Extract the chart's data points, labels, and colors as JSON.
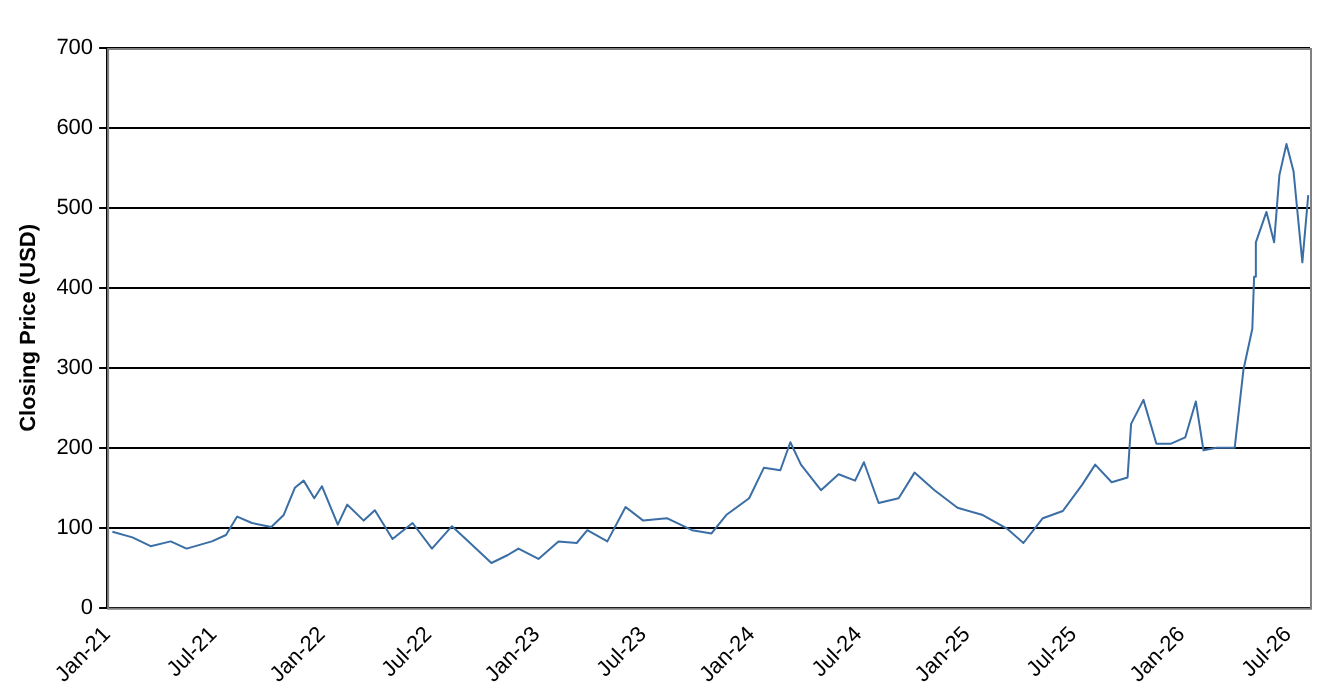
{
  "chart_data": {
    "type": "line",
    "ylabel": "Closing Price (USD)",
    "x": [
      "2021-01-10",
      "2021-02-13",
      "2021-03-16",
      "2021-04-19",
      "2021-05-16",
      "2021-06-28",
      "2021-07-22",
      "2021-08-10",
      "2021-09-04",
      "2021-10-07",
      "2021-10-28",
      "2021-11-16",
      "2021-12-01",
      "2021-12-19",
      "2022-01-01",
      "2022-01-28",
      "2022-02-13",
      "2022-03-13",
      "2022-04-01",
      "2022-05-01",
      "2022-06-04",
      "2022-07-07",
      "2022-08-10",
      "2022-09-07",
      "2022-10-16",
      "2022-11-13",
      "2022-12-01",
      "2023-01-04",
      "2023-02-07",
      "2023-03-10",
      "2023-03-28",
      "2023-05-01",
      "2023-06-01",
      "2023-07-01",
      "2023-08-10",
      "2023-09-22",
      "2023-10-25",
      "2023-11-19",
      "2023-12-28",
      "2024-01-22",
      "2024-02-19",
      "2024-03-07",
      "2024-03-25",
      "2024-04-28",
      "2024-05-28",
      "2024-06-25",
      "2024-07-10",
      "2024-08-04",
      "2024-09-07",
      "2024-10-04",
      "2024-11-07",
      "2024-12-16",
      "2025-01-28",
      "2025-03-10",
      "2025-04-07",
      "2025-05-10",
      "2025-06-13",
      "2025-07-16",
      "2025-08-07",
      "2025-09-04",
      "2025-10-01",
      "2025-10-07",
      "2025-10-28",
      "2025-11-19",
      "2025-12-13",
      "2026-01-07",
      "2026-01-25",
      "2026-02-07",
      "2026-03-01",
      "2026-04-01",
      "2026-04-16",
      "2026-05-01",
      "2026-05-04",
      "2026-05-07",
      "2026-05-25",
      "2026-06-07",
      "2026-06-16",
      "2026-06-28",
      "2026-07-10",
      "2026-07-16",
      "2026-07-25",
      "2026-08-04"
    ],
    "series": [
      {
        "color": "#3a6ea5",
        "values": [
          95,
          88,
          77,
          83,
          74,
          83,
          91,
          114,
          106,
          101,
          116,
          150,
          159,
          137,
          152,
          104,
          129,
          109,
          122,
          86,
          106,
          74,
          102,
          83,
          56,
          66,
          74,
          61,
          83,
          81,
          97,
          83,
          126,
          109,
          112,
          97,
          93,
          116,
          137,
          175,
          172,
          207,
          179,
          147,
          167,
          159,
          182,
          131,
          137,
          169,
          147,
          125,
          116,
          99,
          81,
          112,
          121,
          154,
          179,
          157,
          163,
          230,
          260,
          205,
          205,
          213,
          258,
          197,
          200,
          200,
          298,
          349,
          414,
          457,
          495,
          457,
          541,
          580,
          546,
          500,
          432,
          516
        ]
      }
    ],
    "xlim": [
      "2021-01-01",
      "2026-08-07"
    ],
    "xticks": [
      {
        "value": "2021-01-01",
        "label": "Jan-21"
      },
      {
        "value": "2021-07-01",
        "label": "Jul-21"
      },
      {
        "value": "2022-01-01",
        "label": "Jan-22"
      },
      {
        "value": "2022-07-01",
        "label": "Jul-22"
      },
      {
        "value": "2023-01-01",
        "label": "Jan-23"
      },
      {
        "value": "2023-07-01",
        "label": "Jul-23"
      },
      {
        "value": "2024-01-01",
        "label": "Jan-24"
      },
      {
        "value": "2024-07-01",
        "label": "Jul-24"
      },
      {
        "value": "2025-01-01",
        "label": "Jan-25"
      },
      {
        "value": "2025-07-01",
        "label": "Jul-25"
      },
      {
        "value": "2026-01-01",
        "label": "Jan-26"
      },
      {
        "value": "2026-07-01",
        "label": "Jul-26"
      }
    ],
    "ylim": [
      0,
      700
    ],
    "yticks": [
      0,
      100,
      200,
      300,
      400,
      500,
      600,
      700
    ],
    "grid": "y",
    "marker": "none",
    "line_style": "solid",
    "legend": false
  }
}
